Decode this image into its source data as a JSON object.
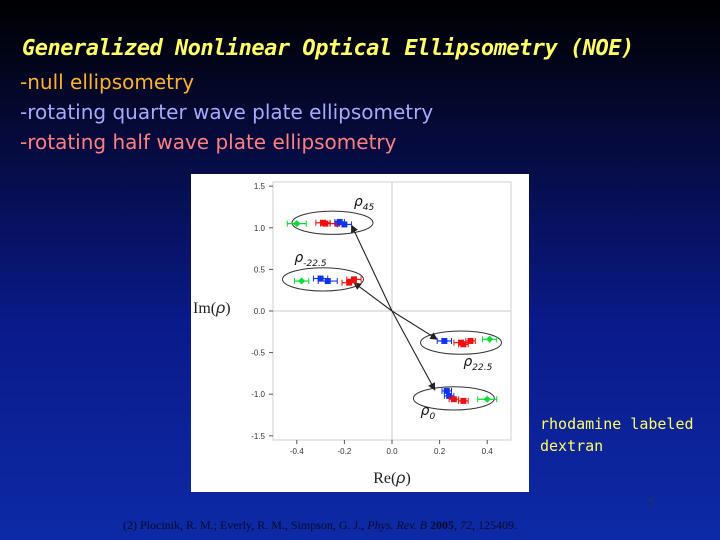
{
  "slide": {
    "title": "Generalized Nonlinear Optical Ellipsometry (NOE)",
    "bullets": [
      "-null ellipsometry",
      "-rotating quarter wave plate ellipsometry",
      "-rotating half wave plate ellipsometry"
    ],
    "caption_lines": [
      "rhodamine labeled",
      "dextran"
    ],
    "page_number": "5",
    "reference": {
      "authors": "(2) Plocinik, R. M.; Everly, R. M., Simpson, G. J.,",
      "journal": "Phys. Rev. B",
      "year": "2005",
      "volume": "72",
      "pages": ", 125409."
    },
    "colors": {
      "title": "#ffff66",
      "bullet_null": "#ffb030",
      "bullet_quarter": "#a8a8ff",
      "bullet_half": "#ff8080",
      "caption": "#ffff66"
    }
  },
  "chart_data": {
    "type": "scatter",
    "xlabel_main": "Re(",
    "xlabel_sym": "ρ",
    "xlabel_end": ")",
    "ylabel_main": "Im(",
    "ylabel_sym": "ρ",
    "ylabel_end": ")",
    "xlim": [
      -0.5,
      0.5
    ],
    "ylim": [
      -1.55,
      1.55
    ],
    "x_ticks": [
      "-0.4",
      "-0.2",
      "0.0",
      "0.2",
      "0.4"
    ],
    "x_tick_values": [
      -0.4,
      -0.2,
      0.0,
      0.2,
      0.4
    ],
    "y_ticks": [
      "1.5",
      "1.0",
      "0.5",
      "0.0",
      "-0.5",
      "-1.0",
      "-1.5"
    ],
    "y_tick_values": [
      1.5,
      1.0,
      0.5,
      0.0,
      -0.5,
      -1.0,
      -1.5
    ],
    "series_colors": [
      "#00dd33",
      "#ee1111",
      "#1133ee"
    ],
    "groups": [
      {
        "label_main": "ρ",
        "label_sub": "45",
        "ellipse": {
          "cx": -0.25,
          "cy": 1.06,
          "rx": 0.17,
          "ry": 0.14
        },
        "label_at": [
          -0.16,
          1.26
        ],
        "points": [
          {
            "x": -0.4,
            "y": 1.05,
            "xerr": 0.04,
            "series": 0
          },
          {
            "x": -0.29,
            "y": 1.06,
            "xerr": 0.03,
            "series": 1
          },
          {
            "x": -0.28,
            "y": 1.05,
            "xerr": 0.02,
            "series": 1
          },
          {
            "x": -0.23,
            "y": 1.05,
            "xerr": 0.03,
            "series": 1
          },
          {
            "x": -0.2,
            "y": 1.04,
            "xerr": 0.03,
            "series": 2
          },
          {
            "x": -0.22,
            "y": 1.07,
            "xerr": 0.02,
            "series": 2
          }
        ]
      },
      {
        "label_main": "ρ",
        "label_sub": "-22.5",
        "ellipse": {
          "cx": -0.29,
          "cy": 0.38,
          "rx": 0.17,
          "ry": 0.14
        },
        "label_at": [
          -0.41,
          0.59
        ],
        "points": [
          {
            "x": -0.38,
            "y": 0.36,
            "xerr": 0.03,
            "series": 0
          },
          {
            "x": -0.3,
            "y": 0.39,
            "xerr": 0.03,
            "series": 2
          },
          {
            "x": -0.27,
            "y": 0.36,
            "xerr": 0.04,
            "series": 2
          },
          {
            "x": -0.18,
            "y": 0.34,
            "xerr": 0.03,
            "series": 1
          },
          {
            "x": -0.16,
            "y": 0.38,
            "xerr": 0.03,
            "series": 1
          }
        ]
      },
      {
        "label_main": "ρ",
        "label_sub": "22.5",
        "ellipse": {
          "cx": 0.29,
          "cy": -0.38,
          "rx": 0.17,
          "ry": 0.14
        },
        "label_at": [
          0.3,
          -0.66
        ],
        "points": [
          {
            "x": 0.22,
            "y": -0.36,
            "xerr": 0.03,
            "series": 2
          },
          {
            "x": 0.29,
            "y": -0.38,
            "xerr": 0.03,
            "series": 1
          },
          {
            "x": 0.33,
            "y": -0.36,
            "xerr": 0.02,
            "series": 1
          },
          {
            "x": 0.41,
            "y": -0.34,
            "xerr": 0.03,
            "series": 0
          },
          {
            "x": 0.3,
            "y": -0.4,
            "xerr": 0.02,
            "series": 1
          }
        ]
      },
      {
        "label_main": "ρ",
        "label_sub": "0",
        "ellipse": {
          "cx": 0.26,
          "cy": -1.05,
          "rx": 0.17,
          "ry": 0.14
        },
        "label_at": [
          0.12,
          -1.25
        ],
        "points": [
          {
            "x": 0.23,
            "y": -0.96,
            "xerr": 0.02,
            "series": 2
          },
          {
            "x": 0.24,
            "y": -1.02,
            "xerr": 0.02,
            "series": 2
          },
          {
            "x": 0.26,
            "y": -1.06,
            "xerr": 0.02,
            "series": 1
          },
          {
            "x": 0.3,
            "y": -1.08,
            "xerr": 0.02,
            "series": 1
          },
          {
            "x": 0.4,
            "y": -1.06,
            "xerr": 0.04,
            "series": 0
          }
        ]
      }
    ],
    "arrows": [
      {
        "from": [
          0.0,
          0.0
        ],
        "to": [
          -0.17,
          1.03
        ]
      },
      {
        "from": [
          0.0,
          0.0
        ],
        "to": [
          -0.16,
          0.34
        ]
      },
      {
        "from": [
          0.0,
          0.0
        ],
        "to": [
          0.19,
          -0.34
        ]
      },
      {
        "from": [
          0.0,
          0.0
        ],
        "to": [
          0.18,
          -0.95
        ]
      }
    ]
  }
}
